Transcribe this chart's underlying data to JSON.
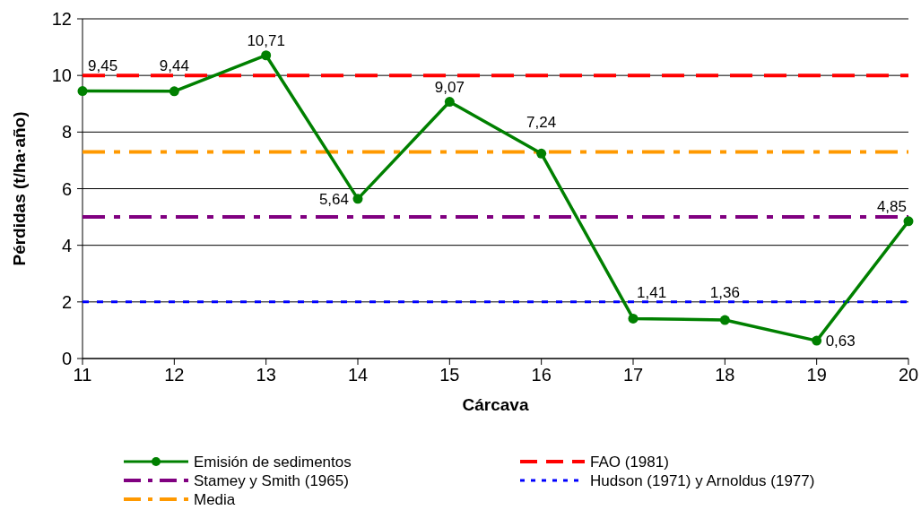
{
  "chart_data": {
    "type": "line",
    "xlabel": "Cárcava",
    "ylabel": "Pérdidas (t/ha·año)",
    "x": [
      11,
      12,
      13,
      14,
      15,
      16,
      17,
      18,
      19,
      20
    ],
    "xlim": [
      11,
      20
    ],
    "xticks": [
      11,
      12,
      13,
      14,
      15,
      16,
      17,
      18,
      19,
      20
    ],
    "ylim": [
      0,
      12
    ],
    "yticks": [
      0,
      2,
      4,
      6,
      8,
      10,
      12
    ],
    "grid": "y",
    "legend": "bottom",
    "marker": "circle",
    "line_style": "solid",
    "series": [
      {
        "name": "Emisión de sedimentos",
        "color": "#008000",
        "values": [
          9.45,
          9.44,
          10.71,
          5.64,
          9.07,
          7.24,
          1.41,
          1.36,
          0.63,
          4.85
        ],
        "value_labels": [
          "9,45",
          "9,44",
          "10,71",
          "5,64",
          "9,07",
          "7,24",
          "1,41",
          "1,36",
          "0,63",
          "4,85"
        ]
      }
    ],
    "ref_lines": [
      {
        "axis": "y",
        "value": 10,
        "label": "FAO (1981)",
        "color": "#ff0000",
        "line_style": "dashed"
      },
      {
        "axis": "y",
        "value": 5,
        "label": "Stamey y Smith (1965)",
        "color": "#800080",
        "line_style": "dashdot"
      },
      {
        "axis": "y",
        "value": 2,
        "label": "Hudson (1971) y Arnoldus (1977)",
        "color": "#0000ff",
        "line_style": "dotted"
      },
      {
        "axis": "y",
        "value": 7.3,
        "label": "Media",
        "color": "#ff9900",
        "line_style": "dashdot"
      }
    ]
  }
}
